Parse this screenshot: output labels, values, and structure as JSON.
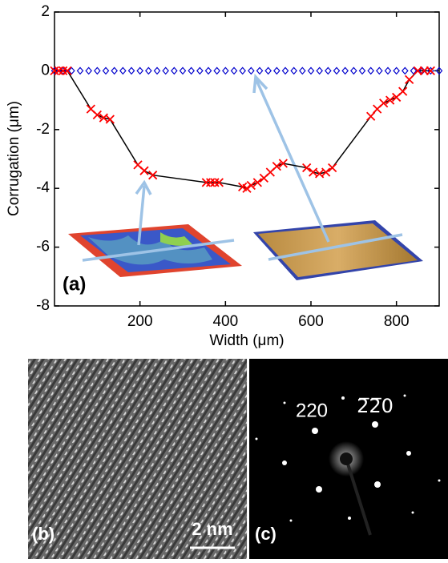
{
  "chart_data": {
    "type": "line",
    "panel_label": "(a)",
    "xlabel": "Width (μm)",
    "ylabel": "Corrugation (μm)",
    "xlim": [
      0,
      900
    ],
    "ylim": [
      -8,
      2
    ],
    "xticks": [
      200,
      400,
      600,
      800
    ],
    "yticks": [
      2,
      0,
      -2,
      -4,
      -6,
      -8
    ],
    "series": [
      {
        "color": "#0000cc",
        "marker": "diamond",
        "x": [
          0,
          20,
          40,
          60,
          80,
          100,
          120,
          140,
          160,
          180,
          200,
          220,
          240,
          260,
          280,
          300,
          320,
          340,
          360,
          380,
          400,
          420,
          440,
          460,
          480,
          500,
          520,
          540,
          560,
          580,
          600,
          620,
          640,
          660,
          680,
          700,
          720,
          740,
          760,
          780,
          800,
          820,
          840,
          860,
          880,
          900
        ],
        "values": [
          0,
          0,
          0,
          0,
          0,
          0,
          0,
          0,
          0,
          0,
          0,
          0,
          0,
          0,
          0,
          0,
          0,
          0,
          0,
          0,
          0,
          0,
          0,
          0,
          0,
          0,
          0,
          0,
          0,
          0,
          0,
          0,
          0,
          0,
          0,
          0,
          0,
          0,
          0,
          0,
          0,
          0,
          0,
          0,
          0,
          0
        ]
      },
      {
        "color": "#ff0000",
        "marker": "x",
        "line_color": "#000000",
        "x": [
          0,
          10,
          20,
          30,
          85,
          100,
          115,
          130,
          195,
          210,
          230,
          355,
          365,
          375,
          385,
          440,
          450,
          460,
          475,
          490,
          505,
          520,
          535,
          590,
          605,
          620,
          635,
          650,
          740,
          755,
          770,
          785,
          800,
          815,
          830,
          850,
          865,
          880
        ],
        "values": [
          0,
          0,
          0,
          0,
          -1.3,
          -1.5,
          -1.6,
          -1.65,
          -3.2,
          -3.4,
          -3.55,
          -3.8,
          -3.8,
          -3.8,
          -3.8,
          -3.95,
          -4.0,
          -3.9,
          -3.8,
          -3.65,
          -3.45,
          -3.25,
          -3.15,
          -3.3,
          -3.45,
          -3.5,
          -3.45,
          -3.3,
          -1.55,
          -1.3,
          -1.1,
          -1.0,
          -0.9,
          -0.7,
          -0.3,
          0,
          0,
          0
        ]
      }
    ]
  },
  "panels": {
    "b_label": "(b)",
    "c_label": "(c)",
    "scale_bar": "2 nm",
    "spot_left": "220",
    "spot_right": "2̅2̅0"
  }
}
